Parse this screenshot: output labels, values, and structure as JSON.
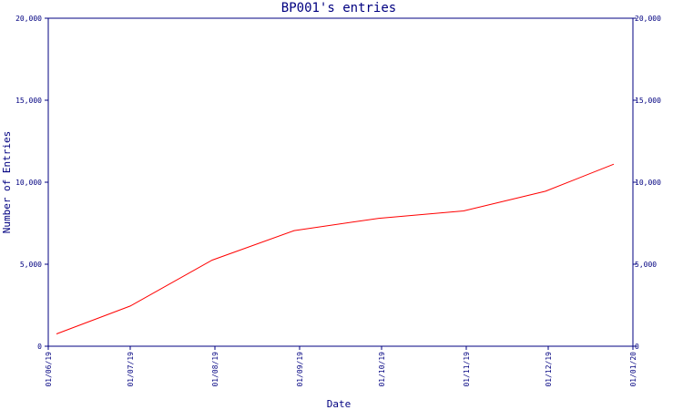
{
  "chart_data": {
    "type": "line",
    "title": "BP001's entries",
    "xlabel": "Date",
    "ylabel": "Number of Entries",
    "xlim": [
      "01/06/19",
      "01/01/20"
    ],
    "ylim": [
      0,
      20000
    ],
    "grid": false,
    "x_ticks": [
      "01/06/19",
      "01/07/19",
      "01/08/19",
      "01/09/19",
      "01/10/19",
      "01/11/19",
      "01/12/19",
      "01/01/20"
    ],
    "y_ticks": [
      "0",
      "5,000",
      "10,000",
      "15,000",
      "20,000"
    ],
    "y_tick_values": [
      0,
      5000,
      10000,
      15000,
      20000
    ],
    "series": [
      {
        "color": "#ff0000",
        "x": [
          "04/06/19",
          "01/07/19",
          "31/07/19",
          "30/08/19",
          "30/09/19",
          "31/10/19",
          "30/11/19",
          "25/12/19"
        ],
        "values": [
          750,
          2450,
          5250,
          7050,
          7800,
          8250,
          9450,
          11100
        ]
      }
    ]
  }
}
